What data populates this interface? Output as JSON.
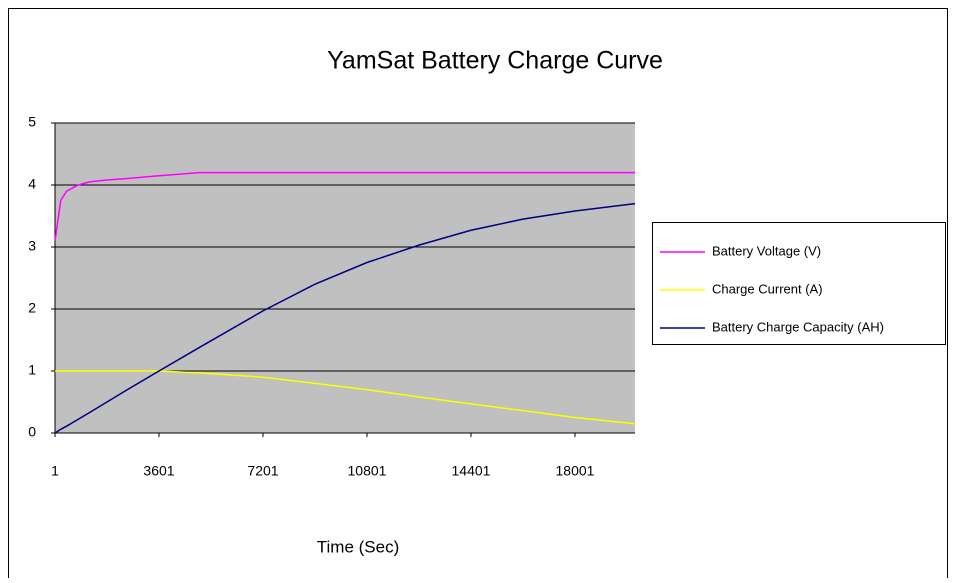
{
  "chart_data": {
    "type": "line",
    "title": "YamSat Battery Charge Curve",
    "x_label": "Time (Sec)",
    "x": [
      1,
      200,
      400,
      800,
      1200,
      1800,
      2400,
      3601,
      5000,
      7201,
      9000,
      10801,
      12600,
      14401,
      16200,
      18001,
      20078
    ],
    "series": [
      {
        "name": "Battery Voltage (V)",
        "color": "#ff00ff",
        "values": [
          3.1,
          3.75,
          3.9,
          4.0,
          4.05,
          4.08,
          4.1,
          4.15,
          4.2,
          4.2,
          4.2,
          4.2,
          4.2,
          4.2,
          4.2,
          4.2,
          4.2
        ]
      },
      {
        "name": "Charge Current (A)",
        "color": "#ffff00",
        "values": [
          1,
          1,
          1,
          1,
          1,
          1,
          1,
          1,
          0.97,
          0.9,
          0.8,
          0.7,
          0.58,
          0.47,
          0.36,
          0.25,
          0.15
        ]
      },
      {
        "name": "Battery Charge Capacity (AH)",
        "color": "#000080",
        "values": [
          0,
          0.06,
          0.11,
          0.22,
          0.33,
          0.5,
          0.67,
          1.0,
          1.38,
          1.97,
          2.4,
          2.75,
          3.03,
          3.27,
          3.45,
          3.58,
          3.7
        ]
      }
    ],
    "xlim": [
      1,
      20078
    ],
    "xticks": [
      1,
      3601,
      7201,
      10801,
      14401,
      18001
    ],
    "ylim": [
      0,
      5
    ],
    "yticks": [
      0,
      1,
      2,
      3,
      4,
      5
    ],
    "grid": true,
    "legend": "right"
  }
}
